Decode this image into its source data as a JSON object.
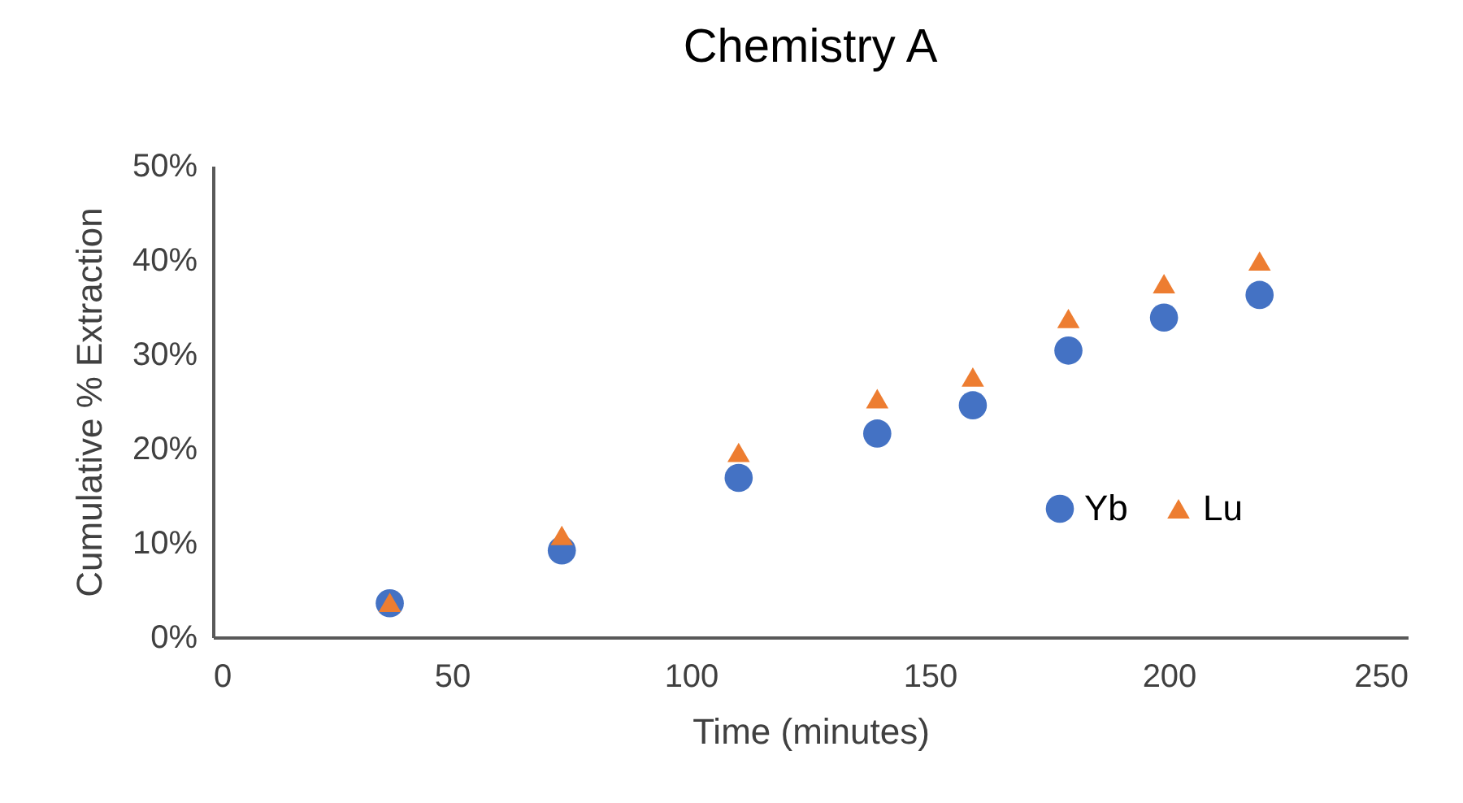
{
  "chart_data": {
    "type": "scatter",
    "title": "Chemistry A",
    "xlabel": "Time (minutes)",
    "ylabel": "Cumulative % Extraction",
    "x": [
      37,
      73,
      110,
      139,
      159,
      179,
      199,
      219
    ],
    "series": [
      {
        "name": "Yb",
        "color": "#4472c4",
        "marker": "circle",
        "values": [
          3.6,
          9.2,
          16.9,
          21.6,
          24.6,
          30.4,
          33.9,
          36.3
        ]
      },
      {
        "name": "Lu",
        "color": "#ed7d31",
        "marker": "triangle",
        "values": [
          3.7,
          10.8,
          19.6,
          25.3,
          27.6,
          33.8,
          37.5,
          39.9
        ]
      }
    ],
    "xlim": [
      0,
      250
    ],
    "xticks": [
      0,
      50,
      100,
      150,
      200,
      250
    ],
    "ylim": [
      0,
      50
    ],
    "yticks": [
      {
        "value": 0,
        "label": "0%"
      },
      {
        "value": 10,
        "label": "10%"
      },
      {
        "value": 20,
        "label": "20%"
      },
      {
        "value": 30,
        "label": "30%"
      },
      {
        "value": 40,
        "label": "40%"
      },
      {
        "value": 50,
        "label": "50%"
      }
    ],
    "grid": false,
    "legend": "right"
  }
}
